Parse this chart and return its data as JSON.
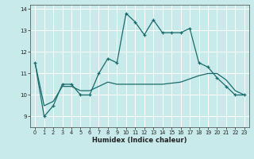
{
  "xlabel": "Humidex (Indice chaleur)",
  "bg_color": "#c8eaea",
  "grid_color": "#ffffff",
  "line_color": "#1a6b6b",
  "x_data": [
    0,
    1,
    2,
    3,
    4,
    5,
    6,
    7,
    8,
    9,
    10,
    11,
    12,
    13,
    14,
    15,
    16,
    17,
    18,
    19,
    20,
    21,
    22,
    23
  ],
  "line1": [
    11.5,
    9.0,
    9.5,
    10.5,
    10.5,
    10.0,
    10.0,
    11.0,
    11.7,
    11.5,
    13.8,
    13.4,
    12.8,
    13.5,
    12.9,
    12.9,
    12.9,
    13.1,
    11.5,
    11.3,
    10.8,
    10.4,
    10.0,
    10.0
  ],
  "line2": [
    11.5,
    9.5,
    9.7,
    10.4,
    10.4,
    10.2,
    10.2,
    10.4,
    10.6,
    10.5,
    10.5,
    10.5,
    10.5,
    10.5,
    10.5,
    10.55,
    10.6,
    10.75,
    10.9,
    11.0,
    11.0,
    10.7,
    10.2,
    10.0
  ],
  "ylim": [
    8.5,
    14.2
  ],
  "xlim": [
    -0.5,
    23.5
  ],
  "yticks": [
    9,
    10,
    11,
    12,
    13,
    14
  ],
  "xticks": [
    0,
    1,
    2,
    3,
    4,
    5,
    6,
    7,
    8,
    9,
    10,
    11,
    12,
    13,
    14,
    15,
    16,
    17,
    18,
    19,
    20,
    21,
    22,
    23
  ]
}
